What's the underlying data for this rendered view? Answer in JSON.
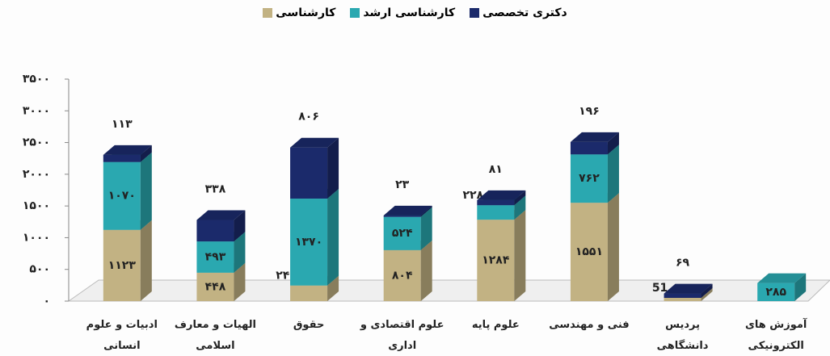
{
  "chart_data": {
    "type": "bar3d-stacked",
    "categories": [
      "ادبیات و علوم انسانی",
      "الهیات و معارف اسلامی",
      "حقوق",
      "علوم اقتصادی و اداری",
      "علوم پایه",
      "فنی و مهندسی",
      "پردیس دانشگاهی",
      "آموزش های الکترونیکی"
    ],
    "series": [
      {
        "name": "کارشناسی",
        "color": "#c2b283",
        "values": [
          1123,
          448,
          246,
          804,
          1284,
          1551,
          51,
          null
        ],
        "value_labels": [
          "۱۱۲۳",
          "۴۴۸",
          "۲۴۶",
          "۸۰۴",
          "۱۲۸۴",
          "۱۵۵۱",
          "51",
          null
        ]
      },
      {
        "name": "کارشناسی ارشد",
        "color": "#2aa8b0",
        "values": [
          1070,
          493,
          1370,
          524,
          228,
          762,
          null,
          285
        ],
        "value_labels": [
          "۱۰۷۰",
          "۴۹۳",
          "۱۳۷۰",
          "۵۲۴",
          "۲۲۸",
          "۷۶۲",
          null,
          "۲۸۵"
        ]
      },
      {
        "name": "دکتری تخصصی",
        "color": "#1b2a6b",
        "values": [
          113,
          338,
          806,
          23,
          81,
          196,
          69,
          null
        ],
        "value_labels": [
          "۱۱۳",
          "۳۳۸",
          "۸۰۶",
          "۲۳",
          "۸۱",
          "۱۹۶",
          "۶۹",
          null
        ]
      }
    ],
    "ylim": [
      0,
      3500
    ],
    "yticks": [
      {
        "value": 0,
        "label": "۰"
      },
      {
        "value": 500,
        "label": "۵۰۰"
      },
      {
        "value": 1000,
        "label": "۱۰۰۰"
      },
      {
        "value": 1500,
        "label": "۱۵۰۰"
      },
      {
        "value": 2000,
        "label": "۲۰۰۰"
      },
      {
        "value": 2500,
        "label": "۲۵۰۰"
      },
      {
        "value": 3000,
        "label": "۳۰۰۰"
      },
      {
        "value": 3500,
        "label": "۳۵۰۰"
      }
    ],
    "grid": false
  }
}
